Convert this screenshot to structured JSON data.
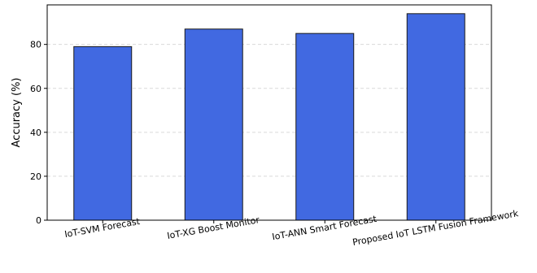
{
  "chart_data": {
    "type": "bar",
    "categories": [
      "IoT-SVM Forecast",
      "IoT-XG Boost Monitor",
      "IoT-ANN Smart Forecast",
      "Proposed IoT LSTM Fusion Framework"
    ],
    "values": [
      79,
      87,
      85,
      94
    ],
    "title": "",
    "xlabel": "",
    "ylabel": "Accuracy (%)",
    "ylim": [
      0,
      98
    ],
    "yticks": [
      0,
      20,
      40,
      60,
      80
    ],
    "grid": "y-dashed",
    "legend": "none",
    "bar_color": "#4169e1",
    "bar_edge_color": "#1a1a1a",
    "grid_color": "#d9d9d9"
  }
}
